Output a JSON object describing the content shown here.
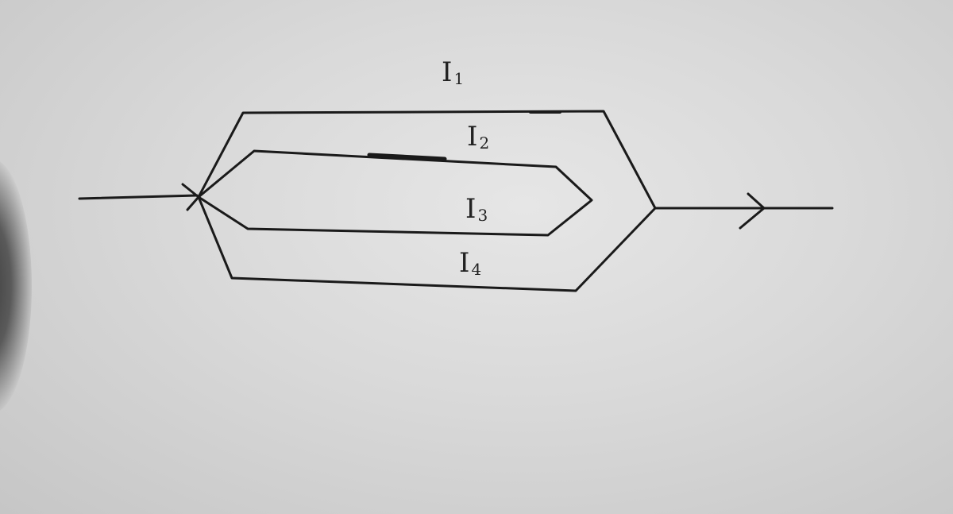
{
  "diagram": {
    "type": "circuit-parallel-branches",
    "description_labels": [
      {
        "id": "branch-1",
        "main": "I",
        "sub": "1"
      },
      {
        "id": "branch-2",
        "main": "I",
        "sub": "2"
      },
      {
        "id": "branch-3",
        "main": "I",
        "sub": "3"
      },
      {
        "id": "branch-4",
        "main": "I",
        "sub": "4"
      }
    ]
  }
}
